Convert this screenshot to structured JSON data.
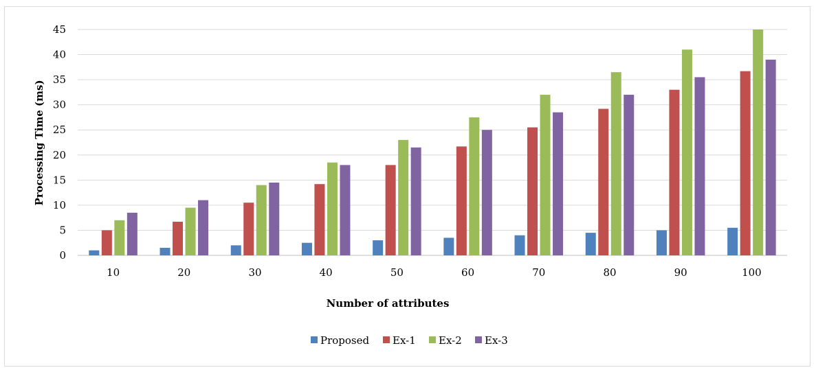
{
  "chart_data": {
    "type": "bar",
    "xlabel": "Number of attributes",
    "ylabel": "Processing Time (ms)",
    "categories": [
      "10",
      "20",
      "30",
      "40",
      "50",
      "60",
      "70",
      "80",
      "90",
      "100"
    ],
    "ylim": [
      0,
      45
    ],
    "yticks": [
      0,
      5,
      10,
      15,
      20,
      25,
      30,
      35,
      40,
      45
    ],
    "grid": true,
    "legend_position": "bottom",
    "series": [
      {
        "name": "Proposed",
        "color": "#4f81bd",
        "values": [
          1,
          1.5,
          2,
          2.5,
          3,
          3.5,
          4,
          4.5,
          5,
          5.5
        ]
      },
      {
        "name": "Ex-1",
        "color": "#c0504d",
        "values": [
          5,
          6.7,
          10.5,
          14.2,
          18,
          21.7,
          25.5,
          29.2,
          33,
          36.7
        ]
      },
      {
        "name": "Ex-2",
        "color": "#9bbb59",
        "values": [
          7,
          9.5,
          14,
          18.5,
          23,
          27.5,
          32,
          36.5,
          41,
          45
        ]
      },
      {
        "name": "Ex-3",
        "color": "#8064a2",
        "values": [
          8.5,
          11,
          14.5,
          18,
          21.5,
          25,
          28.5,
          32,
          35.5,
          39
        ]
      }
    ]
  }
}
